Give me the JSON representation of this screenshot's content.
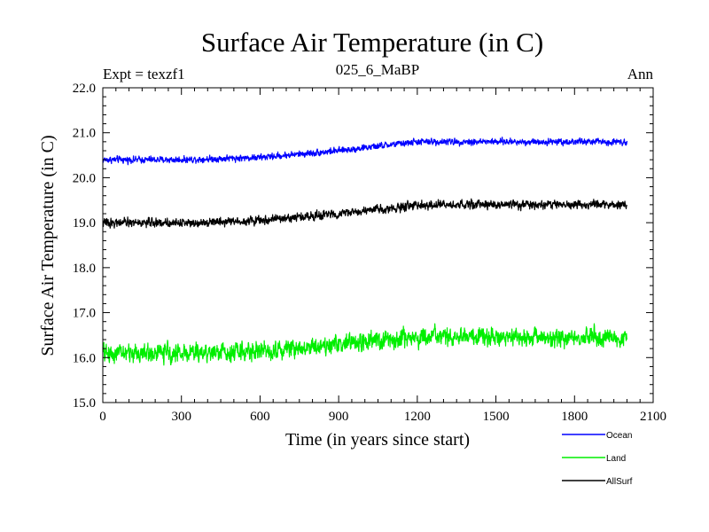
{
  "chart_data": {
    "type": "line",
    "title": "Surface Air Temperature (in C)",
    "subtitle_left": "Expt = texzf1",
    "subtitle_center": "025_6_MaBP",
    "subtitle_right": "Ann",
    "xlabel": "Time (in years since start)",
    "ylabel": "Surface Air Temperature (in C)",
    "xlim": [
      0,
      2100
    ],
    "ylim": [
      15.0,
      22.0
    ],
    "xticks": [
      0,
      300,
      600,
      900,
      1200,
      1500,
      1800,
      2100
    ],
    "yticks": [
      15.0,
      16.0,
      17.0,
      18.0,
      19.0,
      20.0,
      21.0,
      22.0
    ],
    "x_start": 0,
    "x_end": 2000,
    "series": [
      {
        "name": "Ocean",
        "color": "#0000ff",
        "trend_years": [
          0,
          300,
          600,
          900,
          1200,
          1500,
          1800,
          2000
        ],
        "trend_values": [
          20.4,
          20.4,
          20.45,
          20.6,
          20.8,
          20.8,
          20.8,
          20.8
        ],
        "noise_amplitude": 0.1
      },
      {
        "name": "Land",
        "color": "#00ee00",
        "trend_years": [
          0,
          300,
          600,
          900,
          1200,
          1500,
          1800,
          2000
        ],
        "trend_values": [
          16.1,
          16.1,
          16.15,
          16.3,
          16.45,
          16.45,
          16.45,
          16.45
        ],
        "noise_amplitude": 0.28
      },
      {
        "name": "AllSurf",
        "color": "#000000",
        "trend_years": [
          0,
          300,
          600,
          900,
          1200,
          1500,
          1800,
          2000
        ],
        "trend_values": [
          19.0,
          19.0,
          19.05,
          19.2,
          19.38,
          19.4,
          19.4,
          19.4
        ],
        "noise_amplitude": 0.13
      }
    ],
    "legend_position": "bottom-right"
  }
}
